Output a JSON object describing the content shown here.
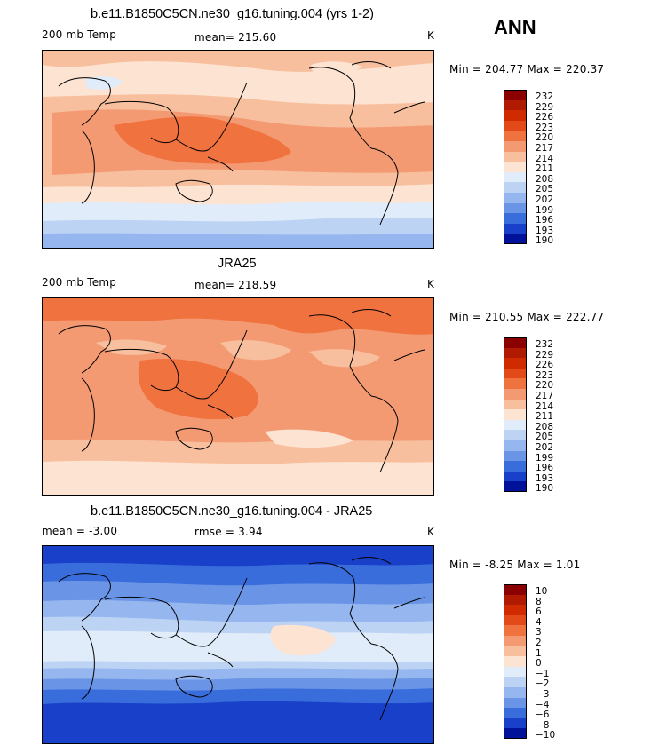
{
  "season": "ANN",
  "panels": [
    {
      "title": "b.e11.B1850C5CN.ne30_g16.tuning.004 (yrs 1-2)",
      "field": "200 mb Temp",
      "stat_text": "mean=  215.60",
      "units": "K",
      "minmax": "Min = 204.77 Max = 220.37",
      "colorbar": {
        "labels": [
          "232",
          "229",
          "226",
          "223",
          "220",
          "217",
          "214",
          "211",
          "208",
          "205",
          "202",
          "199",
          "196",
          "193",
          "190"
        ],
        "colors": [
          "#8b0000",
          "#b01a00",
          "#d02b00",
          "#e34a1a",
          "#f0723f",
          "#f39a73",
          "#f7bf9e",
          "#fde3d1",
          "#e1ecfa",
          "#bcd3f4",
          "#95b6ee",
          "#6a95e6",
          "#3a6ddc",
          "#1840c8",
          "#00129a"
        ]
      }
    },
    {
      "title": "JRA25",
      "field": "200 mb Temp",
      "stat_text": "mean=  218.59",
      "units": "K",
      "minmax": "Min = 210.55 Max = 222.77",
      "colorbar": {
        "labels": [
          "232",
          "229",
          "226",
          "223",
          "220",
          "217",
          "214",
          "211",
          "208",
          "205",
          "202",
          "199",
          "196",
          "193",
          "190"
        ],
        "colors": [
          "#8b0000",
          "#b01a00",
          "#d02b00",
          "#e34a1a",
          "#f0723f",
          "#f39a73",
          "#f7bf9e",
          "#fde3d1",
          "#e1ecfa",
          "#bcd3f4",
          "#95b6ee",
          "#6a95e6",
          "#3a6ddc",
          "#1840c8",
          "#00129a"
        ]
      }
    },
    {
      "title": "b.e11.B1850C5CN.ne30_g16.tuning.004 - JRA25",
      "field": "mean =   -3.00",
      "stat_text": "rmse =    3.94",
      "units": "K",
      "minmax": "Min =  -8.25 Max =   1.01",
      "colorbar": {
        "labels": [
          "10",
          "8",
          "6",
          "4",
          "3",
          "2",
          "1",
          "0",
          "−1",
          "−2",
          "−3",
          "−4",
          "−6",
          "−8",
          "−10"
        ],
        "colors": [
          "#8b0000",
          "#b01a00",
          "#d02b00",
          "#e34a1a",
          "#f0723f",
          "#f39a73",
          "#f7bf9e",
          "#fde3d1",
          "#e1ecfa",
          "#bcd3f4",
          "#95b6ee",
          "#6a95e6",
          "#3a6ddc",
          "#1840c8",
          "#00129a"
        ]
      }
    }
  ]
}
